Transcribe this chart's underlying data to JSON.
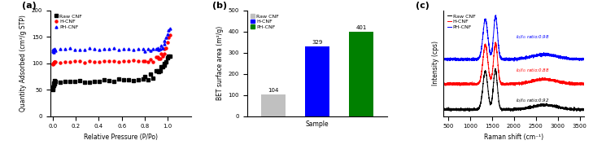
{
  "panel_a": {
    "title": "(a)",
    "xlabel": "Relative Pressure (P/Po)",
    "ylabel": "Quantity Adsorbed (cm³/g STP)",
    "xlim": [
      -0.02,
      1.2
    ],
    "ylim": [
      0,
      200
    ],
    "yticks": [
      0,
      50,
      100,
      150,
      200
    ],
    "xticks": [
      0.0,
      0.2,
      0.4,
      0.6,
      0.8,
      1.0
    ],
    "legend": [
      "Raw CNF",
      "H-CNF",
      "PH-CNF"
    ],
    "colors": [
      "black",
      "red",
      "blue"
    ],
    "markers": [
      "s",
      "o",
      "^"
    ]
  },
  "panel_b": {
    "title": "(b)",
    "xlabel": "Sample",
    "ylabel": "BET surface area (m²/g)",
    "ylim": [
      0,
      500
    ],
    "yticks": [
      0,
      100,
      200,
      300,
      400,
      500
    ],
    "categories": [
      "Raw CNF",
      "H-CNF",
      "PH-CNF"
    ],
    "values": [
      104,
      329,
      401
    ],
    "bar_colors": [
      "#c0c0c0",
      "#0000ff",
      "#008000"
    ],
    "legend": [
      "Raw CNF",
      "H-CNF",
      "PH-CNF"
    ],
    "legend_colors": [
      "#c0c0c0",
      "#0000ff",
      "#008000"
    ]
  },
  "panel_c": {
    "title": "(c)",
    "xlabel": "Raman shift (cm⁻¹)",
    "ylabel": "Intensity (cps)",
    "xlim": [
      400,
      3600
    ],
    "xticks": [
      500,
      1000,
      1500,
      2000,
      2500,
      3000,
      3500
    ],
    "legend": [
      "Raw CNF",
      "H-CNF",
      "PH-CNF"
    ],
    "colors": [
      "black",
      "red",
      "blue"
    ],
    "annotations": [
      {
        "text": "I$_D$/I$_G$ ratio:0.98",
        "color": "blue"
      },
      {
        "text": "I$_D$/I$_G$ ratio:0.88",
        "color": "red"
      },
      {
        "text": "I$_D$/I$_G$ ratio:0.92",
        "color": "black"
      }
    ]
  }
}
